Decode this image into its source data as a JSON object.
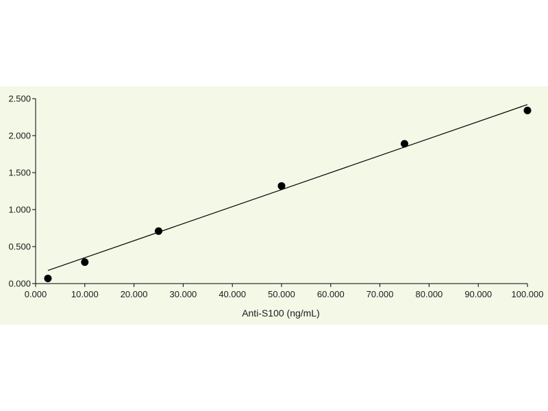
{
  "chart_data": {
    "type": "scatter",
    "title": "",
    "xlabel": "Anti-S100 (ng/mL)",
    "ylabel": "",
    "xlim": [
      0,
      100
    ],
    "ylim": [
      0,
      2.5
    ],
    "x_ticks": [
      0,
      10,
      20,
      30,
      40,
      50,
      60,
      70,
      80,
      90,
      100
    ],
    "x_tick_labels": [
      "0.000",
      "10.000",
      "20.000",
      "30.000",
      "40.000",
      "50.000",
      "60.000",
      "70.000",
      "80.000",
      "90.000",
      "100.000"
    ],
    "y_ticks": [
      0,
      0.5,
      1.0,
      1.5,
      2.0,
      2.5
    ],
    "y_tick_labels": [
      "0.000",
      "0.500",
      "1.000",
      "1.500",
      "2.000",
      "2.500"
    ],
    "grid": false,
    "legend": "none",
    "series": [
      {
        "x": [
          2.5,
          10,
          25,
          50,
          75,
          100
        ],
        "y": [
          0.07,
          0.29,
          0.71,
          1.32,
          1.89,
          2.34
        ]
      }
    ],
    "trendline": {
      "type": "linear",
      "x": [
        0,
        100
      ],
      "y": [
        0.12,
        2.42
      ]
    },
    "colors": {
      "plot_background": "#f3f8e7",
      "marker": "#000000",
      "line": "#000000",
      "axis": "#000000"
    }
  }
}
